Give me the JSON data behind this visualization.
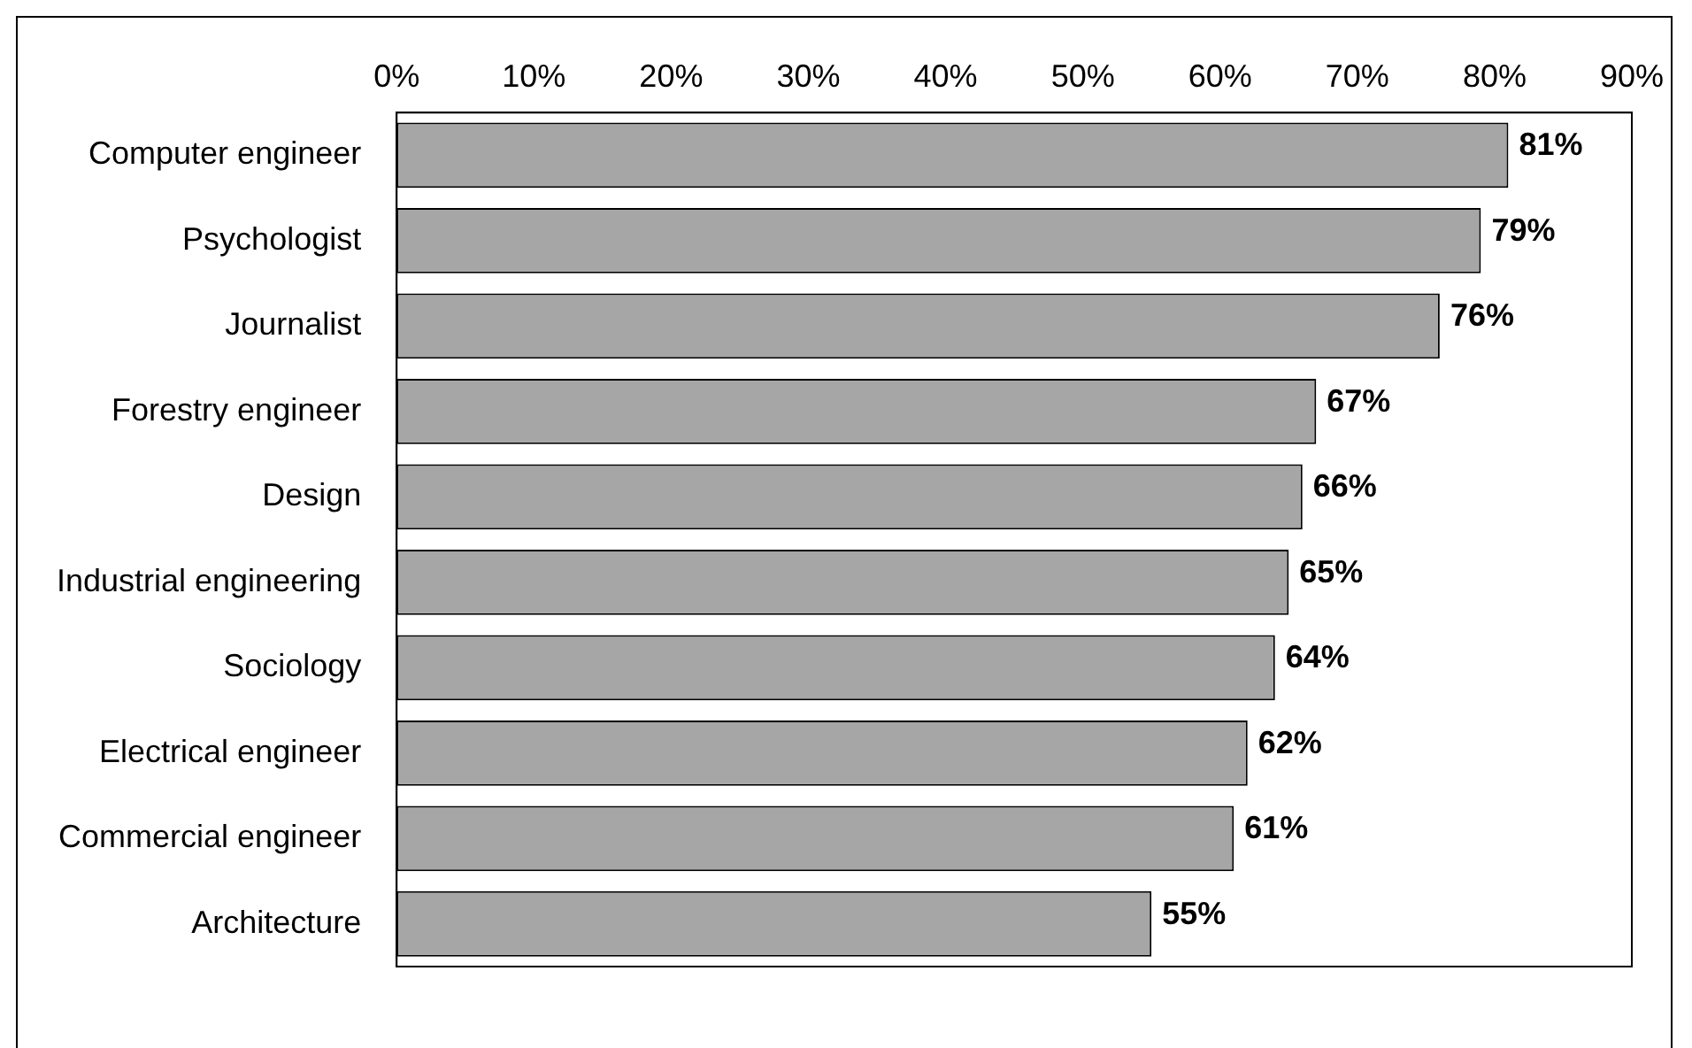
{
  "chart_data": {
    "type": "bar",
    "orientation": "horizontal",
    "categories": [
      "Computer engineer",
      "Psychologist",
      "Journalist",
      "Forestry engineer",
      "Design",
      "Industrial engineering",
      "Sociology",
      "Electrical engineer",
      "Commercial engineer",
      "Architecture"
    ],
    "values": [
      81,
      79,
      76,
      67,
      66,
      65,
      64,
      62,
      61,
      55
    ],
    "value_labels": [
      "81%",
      "79%",
      "76%",
      "67%",
      "66%",
      "65%",
      "64%",
      "62%",
      "61%",
      "55%"
    ],
    "color": "#a6a6a6",
    "xlim": [
      0,
      90
    ],
    "xticks": [
      {
        "value": 0,
        "label": "0%"
      },
      {
        "value": 10,
        "label": "10%"
      },
      {
        "value": 20,
        "label": "20%"
      },
      {
        "value": 30,
        "label": "30%"
      },
      {
        "value": 40,
        "label": "40%"
      },
      {
        "value": 50,
        "label": "50%"
      },
      {
        "value": 60,
        "label": "60%"
      },
      {
        "value": 70,
        "label": "70%"
      },
      {
        "value": 80,
        "label": "80%"
      },
      {
        "value": 90,
        "label": "90%"
      }
    ],
    "grid": false,
    "legend": false
  }
}
